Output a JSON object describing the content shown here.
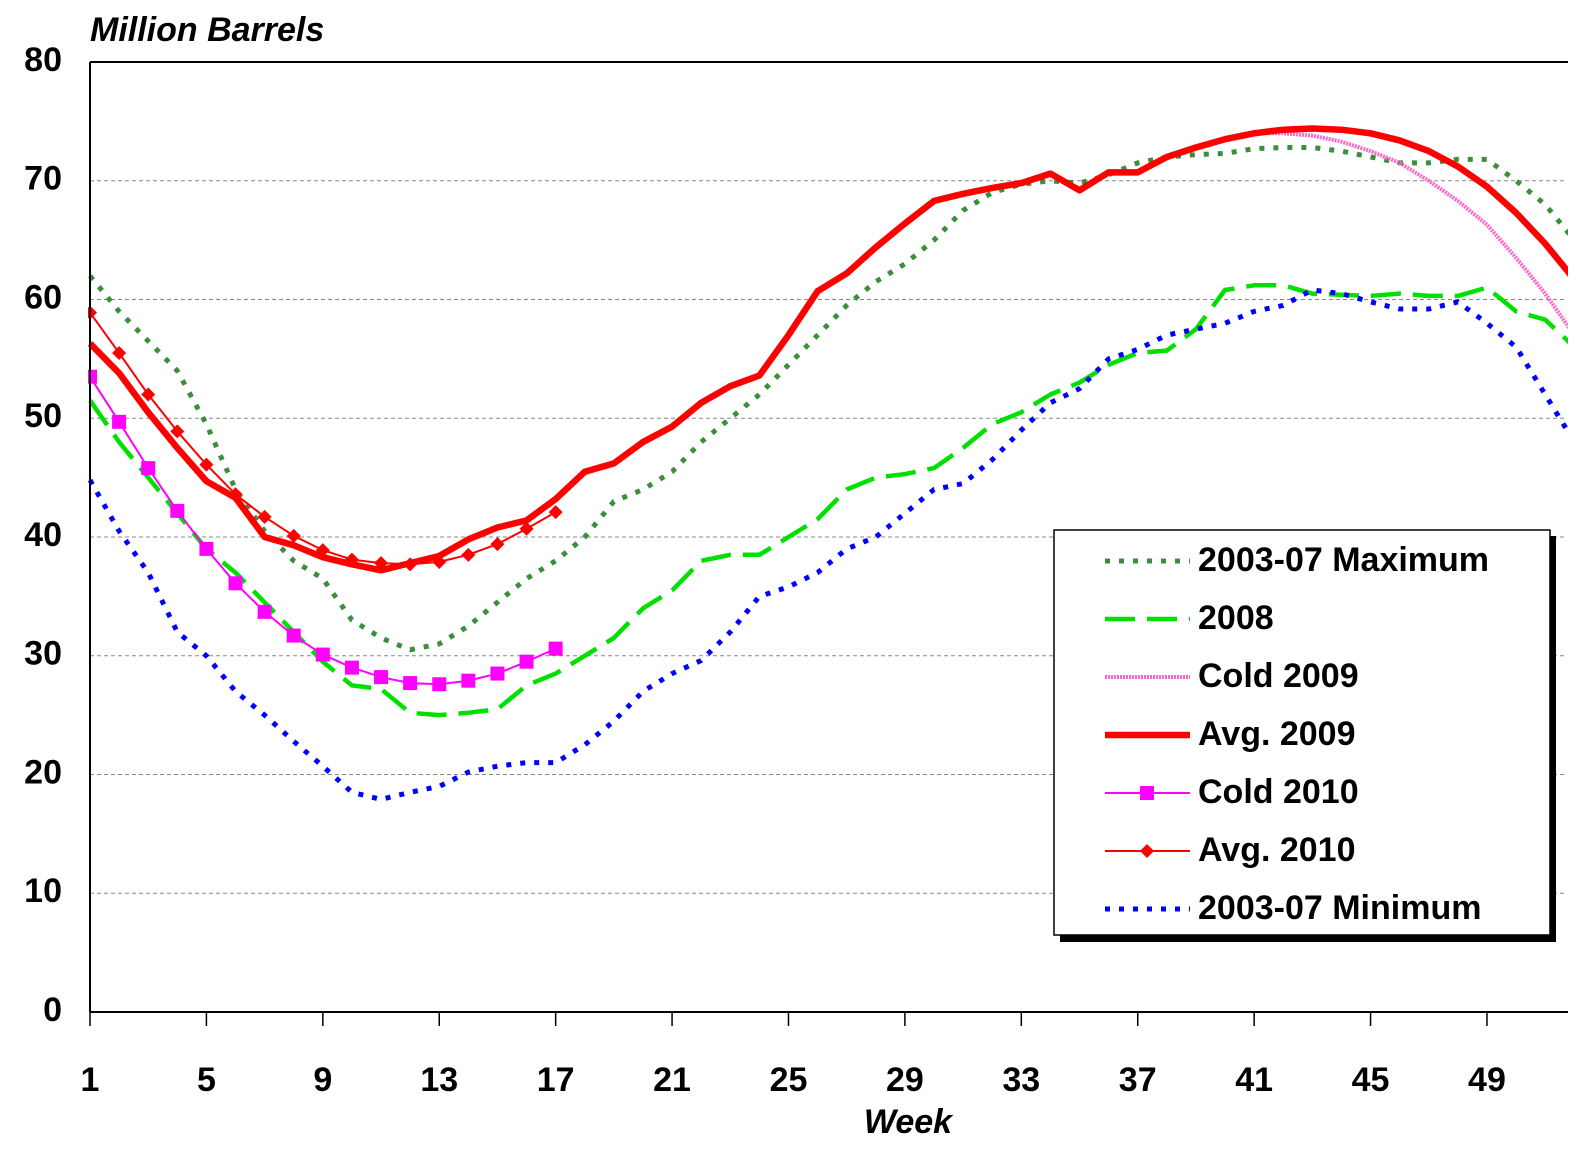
{
  "chart_data": {
    "type": "line",
    "title": "Million Barrels",
    "x_label": "Week",
    "x": [
      1,
      2,
      3,
      4,
      5,
      6,
      7,
      8,
      9,
      10,
      11,
      12,
      13,
      14,
      15,
      16,
      17,
      18,
      19,
      20,
      21,
      22,
      23,
      24,
      25,
      26,
      27,
      28,
      29,
      30,
      31,
      32,
      33,
      34,
      35,
      36,
      37,
      38,
      39,
      40,
      41,
      42,
      43,
      44,
      45,
      46,
      47,
      48,
      49,
      50,
      51,
      52
    ],
    "xlim": [
      1,
      51.75
    ],
    "xticks": [
      1,
      5,
      9,
      13,
      17,
      21,
      25,
      29,
      33,
      37,
      41,
      45,
      49
    ],
    "ylim": [
      0,
      80
    ],
    "yticks": [
      0,
      10,
      20,
      30,
      40,
      50,
      60,
      70,
      80
    ],
    "grid": true,
    "legend": "right",
    "series": [
      {
        "name": "2003-07 Maximum",
        "color": "#3a8f3a",
        "style": "dotted",
        "values": [
          62,
          59,
          56.5,
          54,
          49.5,
          44,
          40.5,
          38,
          36.5,
          33,
          31.5,
          30.5,
          31,
          32.5,
          34.5,
          36.5,
          38,
          40,
          43,
          44,
          45.5,
          48,
          50,
          52,
          54.5,
          57,
          59.5,
          61.5,
          63,
          65,
          67.5,
          69,
          69.7,
          70,
          69.8,
          70.5,
          71.5,
          72,
          72.2,
          72.3,
          72.7,
          72.8,
          72.8,
          72.5,
          72,
          71.5,
          71.5,
          71.8,
          71.8,
          70,
          68,
          65
        ]
      },
      {
        "name": "2008",
        "color": "#00e000",
        "style": "long-dash",
        "values": [
          51.5,
          48,
          45,
          42,
          39,
          37,
          34.5,
          32,
          29.5,
          27.5,
          27.2,
          25.2,
          25,
          25.2,
          25.5,
          27.5,
          28.5,
          30,
          31.5,
          34,
          35.5,
          38,
          38.5,
          38.5,
          40,
          41.5,
          44,
          45,
          45.3,
          45.8,
          47.5,
          49.5,
          50.5,
          52,
          53,
          54.5,
          55.5,
          55.7,
          57.5,
          60.8,
          61.2,
          61.2,
          60.5,
          60.4,
          60.3,
          60.5,
          60.3,
          60.3,
          61,
          59,
          58.3,
          56
        ]
      },
      {
        "name": "Cold 2009",
        "color": "#ff66cc",
        "style": "fine-dotted",
        "values": [
          null,
          null,
          null,
          null,
          null,
          null,
          null,
          null,
          null,
          null,
          null,
          null,
          null,
          null,
          null,
          null,
          null,
          null,
          null,
          null,
          null,
          null,
          null,
          null,
          null,
          null,
          null,
          null,
          null,
          null,
          null,
          null,
          null,
          null,
          null,
          null,
          null,
          null,
          null,
          null,
          74,
          74,
          73.8,
          73.3,
          72.5,
          71.5,
          70,
          68.3,
          66.3,
          63.5,
          60.5,
          57
        ]
      },
      {
        "name": "Avg. 2009",
        "color": "#ff0000",
        "style": "thick",
        "values": [
          56.3,
          53.8,
          50.5,
          47.5,
          44.7,
          43.3,
          40,
          39.3,
          38.3,
          37.7,
          37.2,
          37.8,
          38.4,
          39.8,
          40.8,
          41.4,
          43.2,
          45.5,
          46.2,
          48,
          49.3,
          51.3,
          52.7,
          53.6,
          57,
          60.7,
          62.2,
          64.4,
          66.4,
          68.3,
          68.9,
          69.4,
          69.8,
          70.6,
          69.2,
          70.7,
          70.7,
          72,
          72.8,
          73.5,
          74,
          74.3,
          74.4,
          74.3,
          74,
          73.4,
          72.5,
          71.2,
          69.5,
          67.3,
          64.7,
          61.7
        ]
      },
      {
        "name": "Cold 2010",
        "color": "#ff00ff",
        "style": "solid",
        "marker": "square",
        "values": [
          53.5,
          49.7,
          45.8,
          42.2,
          39,
          36.1,
          33.7,
          31.7,
          30.1,
          29,
          28.2,
          27.7,
          27.6,
          27.9,
          28.5,
          29.5,
          30.6,
          null,
          null,
          null,
          null,
          null,
          null,
          null,
          null,
          null,
          null,
          null,
          null,
          null,
          null,
          null,
          null,
          null,
          null,
          null,
          null,
          null,
          null,
          null,
          null,
          null,
          null,
          null,
          null,
          null,
          null,
          null,
          null,
          null,
          null,
          null
        ]
      },
      {
        "name": "Avg. 2010",
        "color": "#ff0000",
        "style": "solid",
        "marker": "diamond",
        "values": [
          58.9,
          55.5,
          52,
          48.9,
          46.1,
          43.6,
          41.7,
          40.1,
          38.9,
          38.1,
          37.8,
          37.7,
          37.9,
          38.5,
          39.4,
          40.7,
          42.1,
          null,
          null,
          null,
          null,
          null,
          null,
          null,
          null,
          null,
          null,
          null,
          null,
          null,
          null,
          null,
          null,
          null,
          null,
          null,
          null,
          null,
          null,
          null,
          null,
          null,
          null,
          null,
          null,
          null,
          null,
          null,
          null,
          null,
          null,
          null
        ]
      },
      {
        "name": "2003-07 Minimum",
        "color": "#0000ff",
        "style": "dotted",
        "values": [
          44.8,
          40.5,
          37,
          32,
          30,
          27,
          25,
          22.8,
          20.7,
          18.5,
          17.9,
          18.5,
          19,
          20.2,
          20.7,
          21,
          21,
          22.5,
          24.5,
          27,
          28.5,
          29.6,
          32,
          35,
          35.8,
          37,
          39,
          40,
          42,
          44,
          44.5,
          46.5,
          49,
          51.3,
          52.5,
          55,
          55.8,
          57,
          57.5,
          58,
          59,
          59.5,
          60.8,
          60.5,
          59.8,
          59.2,
          59.2,
          59.8,
          58,
          56,
          52,
          48
        ]
      }
    ]
  }
}
